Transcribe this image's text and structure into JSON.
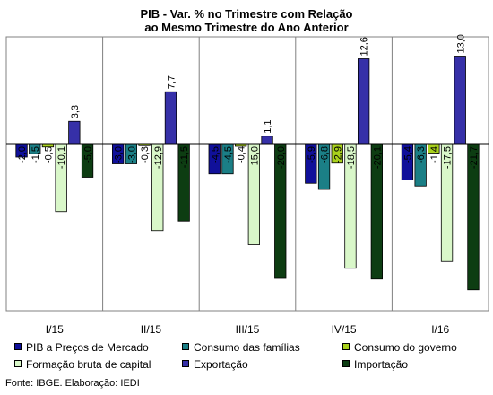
{
  "chart_data": {
    "type": "bar",
    "title": "PIB - Var. % no Trimestre com Relação",
    "subtitle": "ao Mesmo Trimestre do Ano Anterior",
    "categories": [
      "I/15",
      "II/15",
      "III/15",
      "IV/15",
      "I/16"
    ],
    "ylim": [
      -23,
      16
    ],
    "grid": false,
    "legend_position": "bottom",
    "series": [
      {
        "name": "PIB a Preços de Mercado",
        "color": "#10109a",
        "values": [
          -2.0,
          -3.0,
          -4.5,
          -5.9,
          -5.4
        ],
        "labels": [
          "-2,0",
          "-3,0",
          "-4,5",
          "-5,9",
          "-5,4"
        ]
      },
      {
        "name": "Consumo das famílias",
        "color": "#1b7f86",
        "values": [
          -1.5,
          -3.0,
          -4.5,
          -6.8,
          -6.3
        ],
        "labels": [
          "-1,5",
          "-3,0",
          "-4,5",
          "-6,8",
          "-6,3"
        ]
      },
      {
        "name": "Consumo do governo",
        "color": "#a9d11c",
        "values": [
          -0.5,
          -0.3,
          -0.4,
          -2.9,
          -1.4
        ],
        "labels": [
          "-0,5",
          "-0,3",
          "-0,4",
          "-2,9",
          "-1,4"
        ]
      },
      {
        "name": "Formação bruta de capital",
        "color": "#d9f7c9",
        "values": [
          -10.1,
          -12.9,
          -15.0,
          -18.5,
          -17.5
        ],
        "labels": [
          "-10,1",
          "-12,9",
          "-15,0",
          "-18,5",
          "-17,5"
        ]
      },
      {
        "name": "Exportação",
        "color": "#3630a8",
        "values": [
          3.3,
          7.7,
          1.1,
          12.6,
          13.0
        ],
        "labels": [
          "3,3",
          "7,7",
          "1,1",
          "12,6",
          "13,0"
        ]
      },
      {
        "name": "Importação",
        "color": "#0d3d12",
        "values": [
          -5.0,
          -11.5,
          -20.0,
          -20.1,
          -21.7
        ],
        "labels": [
          "-5,0",
          "-11,5",
          "-20,0",
          "-20,1",
          "-21,7"
        ]
      }
    ],
    "source": "Fonte: IBGE. Elaboração: IEDI"
  }
}
